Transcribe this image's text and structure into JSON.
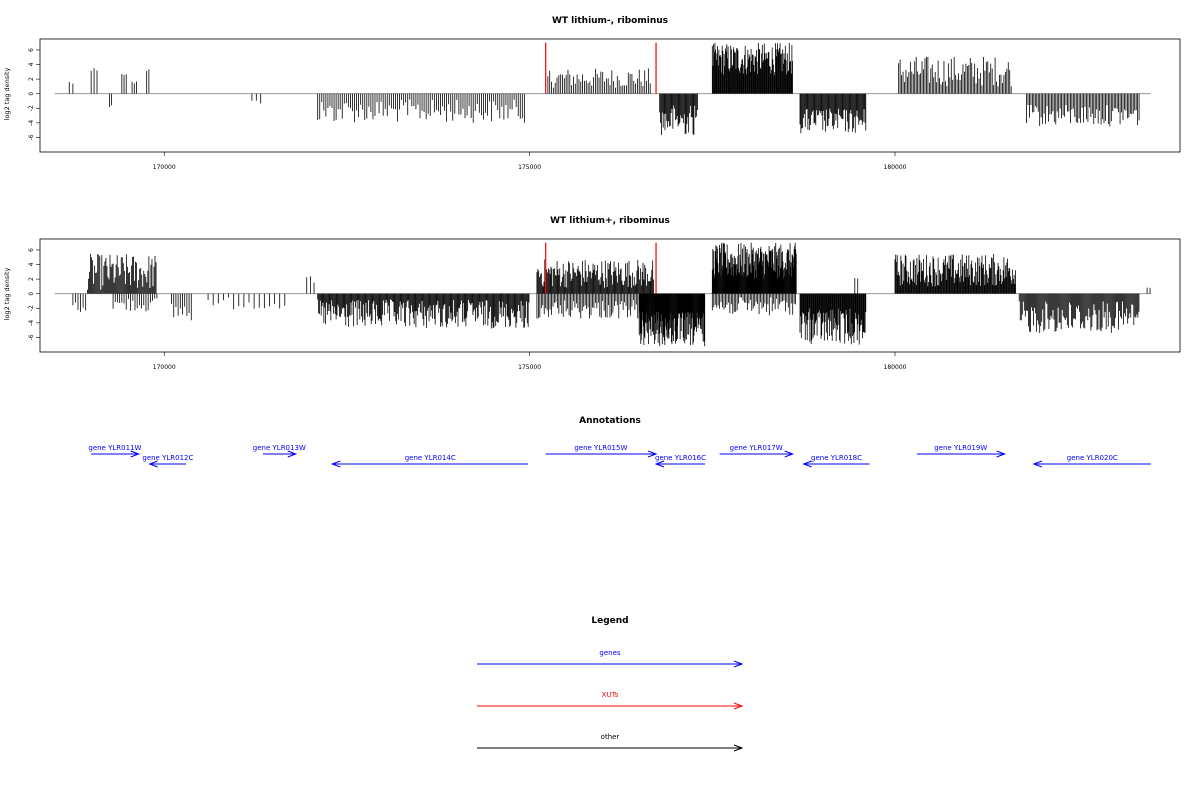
{
  "chart_data": [
    {
      "type": "bar",
      "title": "WT lithium-, ribominus",
      "xlabel": "",
      "ylabel": "log2 tag density",
      "xlim": [
        168300,
        183900
      ],
      "ylim": [
        -8,
        7.5
      ],
      "xticks": [
        170000,
        175000,
        180000
      ],
      "xtick_labels": [
        "170000",
        "175000",
        "180000"
      ],
      "yticks": [
        6,
        4,
        2,
        0,
        -2,
        -4,
        -6
      ],
      "ytick_labels": [
        "6",
        "4",
        "2",
        "0",
        "-2",
        "-4",
        "-6"
      ],
      "baseline": [
        168500,
        183500
      ],
      "markers": [
        {
          "x": 175220,
          "color": "#ff0000",
          "top": 7
        },
        {
          "x": 176730,
          "color": "#ff0000",
          "top": 7
        }
      ],
      "segments": [
        {
          "start": 168700,
          "end": 168750,
          "sign": 1,
          "min": 1.2,
          "max": 1.8,
          "step": 50
        },
        {
          "start": 169000,
          "end": 169080,
          "sign": 1,
          "min": 2.5,
          "max": 3.5,
          "step": 40
        },
        {
          "start": 169250,
          "end": 169280,
          "sign": -1,
          "min": 1.5,
          "max": 2.0,
          "step": 30
        },
        {
          "start": 169420,
          "end": 169480,
          "sign": 1,
          "min": 2.0,
          "max": 2.8,
          "step": 30
        },
        {
          "start": 169560,
          "end": 169620,
          "sign": 1,
          "min": 1.2,
          "max": 1.8,
          "step": 30
        },
        {
          "start": 169760,
          "end": 169790,
          "sign": 1,
          "min": 3.0,
          "max": 3.6,
          "step": 30
        },
        {
          "start": 171200,
          "end": 171320,
          "sign": -1,
          "min": 0.8,
          "max": 1.5,
          "step": 60
        },
        {
          "start": 172100,
          "end": 174950,
          "sign": -1,
          "min": 0.8,
          "max": 4.0,
          "step": 28
        },
        {
          "start": 175250,
          "end": 176650,
          "sign": 1,
          "min": 0.8,
          "max": 3.5,
          "step": 25
        },
        {
          "start": 176780,
          "end": 177300,
          "sign": -1,
          "min": 1.5,
          "max": 5.8,
          "step": 12
        },
        {
          "start": 177500,
          "end": 178600,
          "sign": 1,
          "min": 2.5,
          "max": 7.0,
          "step": 9
        },
        {
          "start": 178700,
          "end": 179600,
          "sign": -1,
          "min": 2.0,
          "max": 5.5,
          "step": 12
        },
        {
          "start": 180050,
          "end": 181600,
          "sign": 1,
          "min": 1.0,
          "max": 5.2,
          "step": 20
        },
        {
          "start": 181800,
          "end": 183350,
          "sign": -1,
          "min": 1.5,
          "max": 4.5,
          "step": 20
        }
      ]
    },
    {
      "type": "bar",
      "title": "WT lithium+, ribominus",
      "xlabel": "",
      "ylabel": "log2 tag density",
      "xlim": [
        168300,
        183900
      ],
      "ylim": [
        -8,
        7.5
      ],
      "xticks": [
        170000,
        175000,
        180000
      ],
      "xtick_labels": [
        "170000",
        "175000",
        "180000"
      ],
      "yticks": [
        6,
        4,
        2,
        0,
        -2,
        -4,
        -6
      ],
      "ytick_labels": [
        "6",
        "4",
        "2",
        "0",
        "-2",
        "-4",
        "-6"
      ],
      "baseline": [
        168500,
        183500
      ],
      "markers": [
        {
          "x": 175220,
          "color": "#ff0000",
          "top": 7
        },
        {
          "x": 176730,
          "color": "#ff0000",
          "top": 7
        }
      ],
      "segments": [
        {
          "start": 168750,
          "end": 168950,
          "sign": -1,
          "min": 1.0,
          "max": 2.8,
          "step": 35
        },
        {
          "start": 168950,
          "end": 169900,
          "sign": 1,
          "min": 0.5,
          "max": 5.5,
          "step": 14
        },
        {
          "start": 169300,
          "end": 169900,
          "sign": -1,
          "min": 0.5,
          "max": 2.5,
          "step": 30
        },
        {
          "start": 170100,
          "end": 170380,
          "sign": -1,
          "min": 1.0,
          "max": 3.8,
          "step": 30
        },
        {
          "start": 170600,
          "end": 171700,
          "sign": -1,
          "min": 0.5,
          "max": 2.2,
          "step": 70
        },
        {
          "start": 171950,
          "end": 172080,
          "sign": 1,
          "min": 1.5,
          "max": 2.5,
          "step": 50
        },
        {
          "start": 172100,
          "end": 175000,
          "sign": -1,
          "min": 0.8,
          "max": 4.8,
          "step": 12
        },
        {
          "start": 175100,
          "end": 176700,
          "sign": 1,
          "min": 0.8,
          "max": 4.8,
          "step": 12
        },
        {
          "start": 175100,
          "end": 176700,
          "sign": -1,
          "min": 0.8,
          "max": 3.5,
          "step": 20
        },
        {
          "start": 176500,
          "end": 177400,
          "sign": -1,
          "min": 2.5,
          "max": 7.3,
          "step": 7
        },
        {
          "start": 177500,
          "end": 178650,
          "sign": 1,
          "min": 2.0,
          "max": 7.0,
          "step": 7
        },
        {
          "start": 177500,
          "end": 178650,
          "sign": -1,
          "min": 0.5,
          "max": 3.0,
          "step": 20
        },
        {
          "start": 178700,
          "end": 179600,
          "sign": -1,
          "min": 2.0,
          "max": 7.0,
          "step": 9
        },
        {
          "start": 179450,
          "end": 179500,
          "sign": 1,
          "min": 2.0,
          "max": 2.6,
          "step": 40
        },
        {
          "start": 180000,
          "end": 181650,
          "sign": 1,
          "min": 1.0,
          "max": 5.5,
          "step": 10
        },
        {
          "start": 181700,
          "end": 183350,
          "sign": -1,
          "min": 1.0,
          "max": 5.5,
          "step": 14
        },
        {
          "start": 183450,
          "end": 183500,
          "sign": 1,
          "min": 0.5,
          "max": 0.9,
          "step": 40
        }
      ]
    }
  ],
  "annotations": {
    "title": "Annotations",
    "genes": [
      {
        "label": "gene YLR011W",
        "start": 169000,
        "end": 169650,
        "dir": "right",
        "row": 0
      },
      {
        "label": "gene YLR012C",
        "start": 169800,
        "end": 170300,
        "dir": "left",
        "row": 1
      },
      {
        "label": "gene YLR013W",
        "start": 171350,
        "end": 171800,
        "dir": "right",
        "row": 0
      },
      {
        "label": "gene YLR014C",
        "start": 172300,
        "end": 174980,
        "dir": "left",
        "row": 1
      },
      {
        "label": "gene YLR015W",
        "start": 175220,
        "end": 176730,
        "dir": "right",
        "row": 0
      },
      {
        "label": "gene YLR016C",
        "start": 176730,
        "end": 177400,
        "dir": "left",
        "row": 1
      },
      {
        "label": "gene YLR017W",
        "start": 177600,
        "end": 178600,
        "dir": "right",
        "row": 0
      },
      {
        "label": "gene YLR018C",
        "start": 178750,
        "end": 179650,
        "dir": "left",
        "row": 1
      },
      {
        "label": "gene YLR019W",
        "start": 180300,
        "end": 181500,
        "dir": "right",
        "row": 0
      },
      {
        "label": "gene YLR020C",
        "start": 181900,
        "end": 183500,
        "dir": "left",
        "row": 1
      }
    ]
  },
  "legend": {
    "title": "Legend",
    "items": [
      {
        "label": "genes",
        "color": "#0000ff"
      },
      {
        "label": "XUTs",
        "color": "#ff0000"
      },
      {
        "label": "other",
        "color": "#000000"
      }
    ]
  }
}
